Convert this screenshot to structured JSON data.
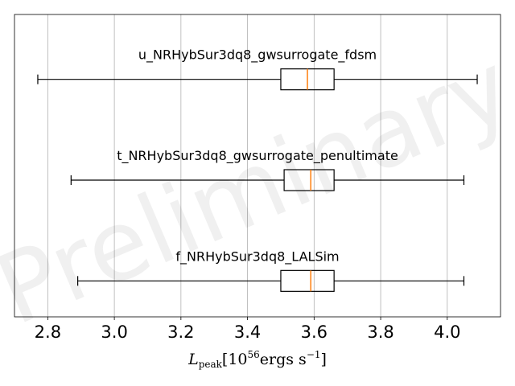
{
  "chart_data": {
    "type": "boxplot",
    "orientation": "horizontal",
    "title": "",
    "xlabel_parts": {
      "symbol": "L",
      "subscript": "peak",
      "open": "[10",
      "exponent": "56",
      "unit": "ergs s",
      "unit_exponent": "−1",
      "close": "]"
    },
    "xlim": [
      2.7,
      4.16
    ],
    "xticks": [
      "2.8",
      "3.0",
      "3.2",
      "3.4",
      "3.6",
      "3.8",
      "4.0"
    ],
    "grid": "x",
    "watermark": "Preliminary",
    "colors": {
      "box": "#000000",
      "median": "#ff7f0e",
      "grid": "#b0b0b0",
      "watermark": "#000000"
    },
    "series": [
      {
        "name": "u_NRHybSur3dq8_gwsurrogate_fdsm",
        "whisker_low": 2.77,
        "q1": 3.5,
        "median": 3.58,
        "q3": 3.66,
        "whisker_high": 4.09
      },
      {
        "name": "t_NRHybSur3dq8_gwsurrogate_penultimate",
        "whisker_low": 2.87,
        "q1": 3.51,
        "median": 3.59,
        "q3": 3.66,
        "whisker_high": 4.05
      },
      {
        "name": "f_NRHybSur3dq8_LALSim",
        "whisker_low": 2.89,
        "q1": 3.5,
        "median": 3.59,
        "q3": 3.66,
        "whisker_high": 4.05
      }
    ]
  }
}
